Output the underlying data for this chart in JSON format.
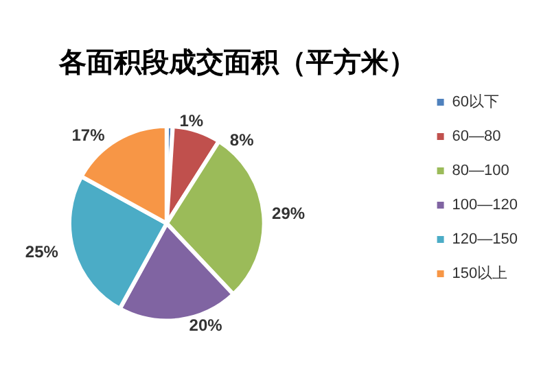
{
  "chart_data": {
    "type": "pie",
    "title": "各面积段成交面积（平方米）",
    "categories": [
      "60以下",
      "60—80",
      "80—100",
      "100—120",
      "120—150",
      "150以上"
    ],
    "values": [
      1,
      8,
      29,
      20,
      25,
      17
    ],
    "colors": [
      "#4f81bd",
      "#c0504d",
      "#9bbb59",
      "#8064a2",
      "#4bacc6",
      "#f79646"
    ],
    "value_labels": [
      "1%",
      "8%",
      "29%",
      "20%",
      "25%",
      "17%"
    ],
    "legend": "right"
  }
}
